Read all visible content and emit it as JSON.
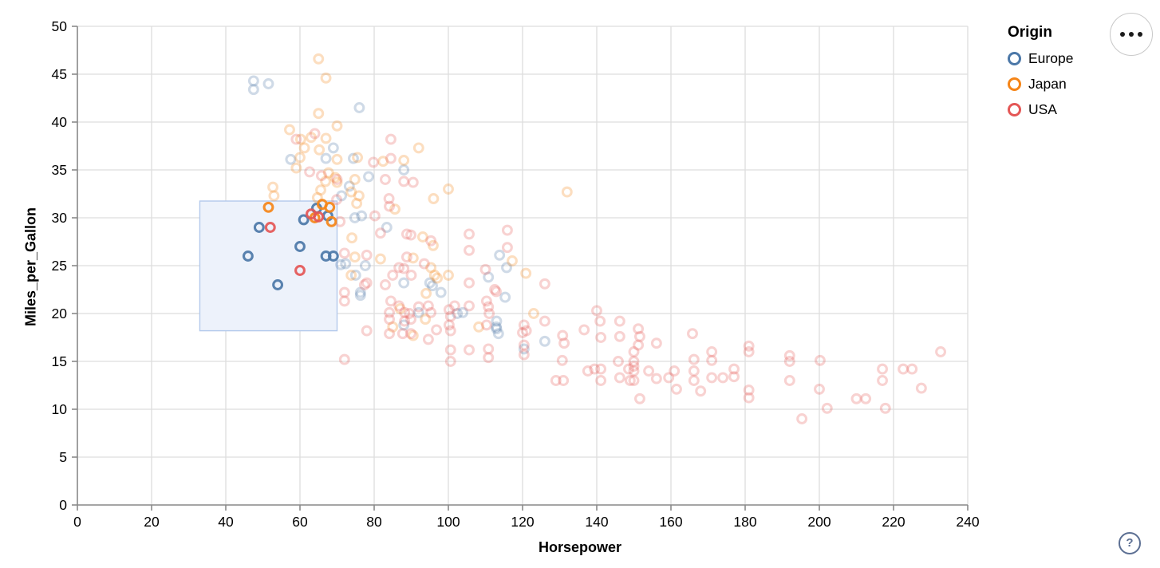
{
  "colors": {
    "europe": "#4c78a8",
    "japan": "#f58518",
    "usa": "#e45756",
    "grid": "#dddddd",
    "axis": "#8a8a8a",
    "brush_fill": "#edf2fb",
    "brush_stroke": "#b3c9ec",
    "help_accent": "#5c6f93"
  },
  "legend": {
    "title": "Origin",
    "entries": [
      {
        "label": "Europe",
        "color": "#4c78a8"
      },
      {
        "label": "Japan",
        "color": "#f58518"
      },
      {
        "label": "USA",
        "color": "#e45756"
      }
    ]
  },
  "toolbar": {
    "more_options_icon": "•••",
    "help_icon": "?"
  },
  "chart_data": {
    "type": "scatter",
    "title": "",
    "xlabel": "Horsepower",
    "ylabel": "Miles_per_Gallon",
    "xlim": [
      0,
      240
    ],
    "ylim": [
      0,
      50
    ],
    "xticks": [
      0,
      20,
      40,
      60,
      80,
      100,
      120,
      140,
      160,
      180,
      200,
      220,
      240
    ],
    "yticks": [
      0,
      5,
      10,
      15,
      20,
      25,
      30,
      35,
      40,
      45,
      50
    ],
    "grid": true,
    "legend_position": "top-right",
    "brush_selection": {
      "x": [
        33,
        70
      ],
      "y": [
        18.2,
        31.75
      ]
    },
    "point_style": {
      "radius": 5.4,
      "stroke_width": 3.1,
      "selected_opacity": 0.92,
      "unselected_opacity": 0.27
    },
    "series": [
      {
        "name": "Europe",
        "color": "#4c78a8",
        "selected": [
          [
            46,
            26
          ],
          [
            49,
            29
          ],
          [
            54,
            23
          ],
          [
            60,
            27
          ],
          [
            61,
            29.8
          ],
          [
            64.5,
            31
          ],
          [
            67.5,
            30.2
          ],
          [
            67,
            26
          ],
          [
            69,
            26
          ]
        ],
        "unselected": [
          [
            47.5,
            44.3
          ],
          [
            51.5,
            44
          ],
          [
            47.5,
            43.4
          ],
          [
            76,
            41.5
          ],
          [
            69,
            37.3
          ],
          [
            67,
            36.2
          ],
          [
            57.5,
            36.1
          ],
          [
            74.4,
            36.2
          ],
          [
            88,
            35
          ],
          [
            78.5,
            34.3
          ],
          [
            73.3,
            33.3
          ],
          [
            71.2,
            32.3
          ],
          [
            76.6,
            30.2
          ],
          [
            74.8,
            30
          ],
          [
            83.4,
            29
          ],
          [
            71,
            25.1
          ],
          [
            72.3,
            25.2
          ],
          [
            77.6,
            25
          ],
          [
            75,
            24
          ],
          [
            88,
            23.2
          ],
          [
            95,
            23.2
          ],
          [
            95.7,
            22.9
          ],
          [
            76.3,
            22.2
          ],
          [
            76.3,
            21.9
          ],
          [
            98,
            22.2
          ],
          [
            92,
            20.1
          ],
          [
            102.4,
            20
          ],
          [
            103.9,
            20.1
          ],
          [
            88,
            18.8
          ],
          [
            113,
            19.2
          ],
          [
            113,
            18.4
          ],
          [
            112.9,
            18.6
          ],
          [
            113.5,
            17.9
          ],
          [
            115.3,
            21.7
          ],
          [
            110.8,
            23.8
          ],
          [
            113.8,
            26.1
          ],
          [
            115.7,
            24.8
          ],
          [
            126,
            17.1
          ],
          [
            120.4,
            16.3
          ]
        ]
      },
      {
        "name": "Japan",
        "color": "#f58518",
        "selected": [
          [
            51.5,
            31.1
          ],
          [
            66,
            31.4
          ],
          [
            68,
            31.1
          ],
          [
            64,
            30
          ],
          [
            68.5,
            29.6
          ]
        ],
        "unselected": [
          [
            65,
            46.6
          ],
          [
            67,
            44.6
          ],
          [
            65,
            40.9
          ],
          [
            70,
            39.6
          ],
          [
            57.2,
            39.2
          ],
          [
            63,
            38.4
          ],
          [
            67,
            38.3
          ],
          [
            60.2,
            38.2
          ],
          [
            92,
            37.3
          ],
          [
            61.2,
            37.3
          ],
          [
            65.2,
            37.1
          ],
          [
            60,
            36.3
          ],
          [
            75.5,
            36.3
          ],
          [
            70,
            36.1
          ],
          [
            88,
            36
          ],
          [
            82.4,
            35.9
          ],
          [
            59,
            35.2
          ],
          [
            67.7,
            34.7
          ],
          [
            69.5,
            34.2
          ],
          [
            74.8,
            34
          ],
          [
            66.9,
            33.8
          ],
          [
            70,
            33.7
          ],
          [
            52.7,
            33.2
          ],
          [
            100,
            33
          ],
          [
            65.6,
            32.9
          ],
          [
            132,
            32.7
          ],
          [
            53,
            32.3
          ],
          [
            64.7,
            32.1
          ],
          [
            96,
            32
          ],
          [
            73.8,
            32.7
          ],
          [
            75.9,
            32.3
          ],
          [
            75.3,
            31.5
          ],
          [
            85.6,
            30.9
          ],
          [
            93.1,
            28
          ],
          [
            74,
            27.9
          ],
          [
            95.9,
            27.1
          ],
          [
            74.8,
            25.9
          ],
          [
            81.7,
            25.7
          ],
          [
            90.5,
            25.8
          ],
          [
            95.3,
            24.8
          ],
          [
            96.3,
            24
          ],
          [
            97,
            23.7
          ],
          [
            100,
            24
          ],
          [
            73.8,
            24
          ],
          [
            94,
            22.1
          ],
          [
            93.8,
            19.4
          ],
          [
            85,
            18.6
          ],
          [
            90.5,
            17.7
          ],
          [
            87,
            20.5
          ],
          [
            117.2,
            25.5
          ],
          [
            120.9,
            24.2
          ],
          [
            123,
            20
          ],
          [
            108.2,
            18.6
          ]
        ]
      },
      {
        "name": "USA",
        "color": "#e45756",
        "selected": [
          [
            52,
            29
          ],
          [
            60,
            24.5
          ],
          [
            63,
            30.4
          ],
          [
            65,
            30.1
          ]
        ],
        "unselected": [
          [
            64,
            38.8
          ],
          [
            59,
            38.2
          ],
          [
            84.5,
            38.2
          ],
          [
            84.5,
            36.2
          ],
          [
            79.8,
            35.8
          ],
          [
            62.6,
            34.8
          ],
          [
            65.8,
            34.4
          ],
          [
            70,
            34
          ],
          [
            83,
            34
          ],
          [
            88,
            33.8
          ],
          [
            90.5,
            33.7
          ],
          [
            84,
            32
          ],
          [
            84.1,
            31.2
          ],
          [
            69.9,
            31.9
          ],
          [
            70.8,
            29.6
          ],
          [
            80.2,
            30.2
          ],
          [
            81.7,
            28.4
          ],
          [
            88.8,
            28.3
          ],
          [
            89.9,
            28.2
          ],
          [
            95.3,
            27.6
          ],
          [
            105.6,
            28.3
          ],
          [
            105.6,
            26.6
          ],
          [
            115.9,
            28.7
          ],
          [
            115.9,
            26.9
          ],
          [
            72,
            26.3
          ],
          [
            78,
            26.1
          ],
          [
            88.8,
            25.9
          ],
          [
            93.5,
            25.2
          ],
          [
            86.7,
            24.8
          ],
          [
            90,
            24
          ],
          [
            85,
            24
          ],
          [
            88,
            24.7
          ],
          [
            83,
            23
          ],
          [
            78,
            23.2
          ],
          [
            77.4,
            23
          ],
          [
            110,
            24.6
          ],
          [
            105.6,
            23.2
          ],
          [
            112.9,
            22.3
          ],
          [
            112.5,
            22.5
          ],
          [
            72,
            22.2
          ],
          [
            72,
            21.3
          ],
          [
            84.5,
            21.3
          ],
          [
            86.7,
            20.8
          ],
          [
            88.2,
            20.1
          ],
          [
            89.5,
            20
          ],
          [
            92,
            20.7
          ],
          [
            94.6,
            20.8
          ],
          [
            95.3,
            20.1
          ],
          [
            100.2,
            20.4
          ],
          [
            100.6,
            19.7
          ],
          [
            101.7,
            20.8
          ],
          [
            105.6,
            20.8
          ],
          [
            110.3,
            21.3
          ],
          [
            110.8,
            20.7
          ],
          [
            111,
            20
          ],
          [
            84.1,
            20.1
          ],
          [
            84.1,
            19.4
          ],
          [
            88.2,
            19.2
          ],
          [
            89.9,
            19.4
          ],
          [
            96.8,
            18.3
          ],
          [
            100.2,
            18.8
          ],
          [
            100.6,
            18.2
          ],
          [
            110.3,
            18.8
          ],
          [
            78,
            18.2
          ],
          [
            84.1,
            17.9
          ],
          [
            87.7,
            17.9
          ],
          [
            89.9,
            17.9
          ],
          [
            94.6,
            17.3
          ],
          [
            100.6,
            16.2
          ],
          [
            105.6,
            16.2
          ],
          [
            100.6,
            15
          ],
          [
            110.8,
            16.3
          ],
          [
            110.8,
            15.4
          ],
          [
            72,
            15.2
          ],
          [
            120.4,
            16.7
          ],
          [
            120.4,
            18.8
          ],
          [
            120,
            18
          ],
          [
            126,
            23.1
          ],
          [
            126,
            19.2
          ],
          [
            121,
            18.2
          ],
          [
            130.8,
            17.7
          ],
          [
            131.2,
            16.9
          ],
          [
            136.6,
            18.3
          ],
          [
            140,
            20.3
          ],
          [
            140.9,
            19.2
          ],
          [
            141.1,
            17.5
          ],
          [
            146.2,
            19.2
          ],
          [
            146.2,
            17.6
          ],
          [
            151.2,
            18.4
          ],
          [
            151.6,
            17.6
          ],
          [
            151.2,
            16.7
          ],
          [
            156.1,
            16.9
          ],
          [
            165.8,
            17.9
          ],
          [
            120.4,
            15.7
          ],
          [
            130.7,
            15.1
          ],
          [
            129,
            13
          ],
          [
            131,
            13
          ],
          [
            137.6,
            14
          ],
          [
            139.4,
            14.2
          ],
          [
            141.1,
            14.2
          ],
          [
            141.1,
            13
          ],
          [
            145.8,
            15
          ],
          [
            146.2,
            13.3
          ],
          [
            148.6,
            14.2
          ],
          [
            150,
            16
          ],
          [
            150,
            15
          ],
          [
            150,
            14.5
          ],
          [
            150,
            14
          ],
          [
            150,
            13
          ],
          [
            149,
            13
          ],
          [
            154,
            14
          ],
          [
            156.1,
            13.2
          ],
          [
            159.4,
            13.3
          ],
          [
            160.9,
            14
          ],
          [
            161.5,
            12.1
          ],
          [
            151.6,
            11.1
          ],
          [
            166.2,
            15.2
          ],
          [
            166.2,
            14
          ],
          [
            166.2,
            13
          ],
          [
            168,
            11.9
          ],
          [
            171,
            16
          ],
          [
            171,
            15.1
          ],
          [
            171,
            13.3
          ],
          [
            174,
            13.3
          ],
          [
            177,
            14.2
          ],
          [
            177,
            13.4
          ],
          [
            181,
            16.6
          ],
          [
            181,
            16
          ],
          [
            181,
            12
          ],
          [
            181,
            11.2
          ],
          [
            192,
            15.6
          ],
          [
            192,
            15
          ],
          [
            192,
            13
          ],
          [
            200.2,
            15.1
          ],
          [
            200,
            12.1
          ],
          [
            195.3,
            9
          ],
          [
            202.1,
            10.1
          ],
          [
            210,
            11.1
          ],
          [
            212.5,
            11.1
          ],
          [
            217,
            14.2
          ],
          [
            217,
            13
          ],
          [
            217.8,
            10.1
          ],
          [
            222.6,
            14.2
          ],
          [
            225,
            14.2
          ],
          [
            227.5,
            12.2
          ],
          [
            232.7,
            16
          ]
        ]
      }
    ]
  }
}
